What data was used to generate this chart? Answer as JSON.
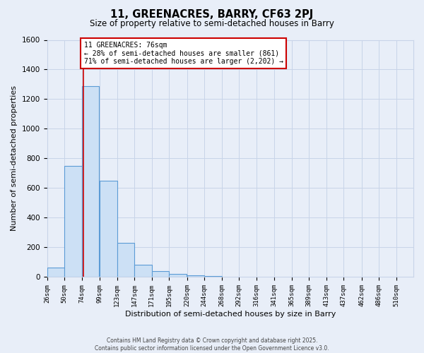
{
  "title": "11, GREENACRES, BARRY, CF63 2PJ",
  "subtitle": "Size of property relative to semi-detached houses in Barry",
  "xlabel": "Distribution of semi-detached houses by size in Barry",
  "ylabel": "Number of semi-detached properties",
  "bar_labels": [
    "26sqm",
    "50sqm",
    "74sqm",
    "99sqm",
    "123sqm",
    "147sqm",
    "171sqm",
    "195sqm",
    "220sqm",
    "244sqm",
    "268sqm",
    "292sqm",
    "316sqm",
    "341sqm",
    "365sqm",
    "389sqm",
    "413sqm",
    "437sqm",
    "462sqm",
    "486sqm",
    "510sqm"
  ],
  "bar_values": [
    65,
    750,
    1290,
    650,
    230,
    85,
    40,
    20,
    10,
    5,
    0,
    0,
    0,
    0,
    0,
    0,
    0,
    0,
    0,
    0,
    0
  ],
  "bar_color": "#cce0f5",
  "bar_edge_color": "#5b9bd5",
  "property_line_x": 76,
  "property_line_label": "11 GREENACRES: 76sqm",
  "annotation_line1": "← 28% of semi-detached houses are smaller (861)",
  "annotation_line2": "71% of semi-detached houses are larger (2,202) →",
  "annotation_box_facecolor": "#ffffff",
  "annotation_box_edgecolor": "#cc0000",
  "ylim": [
    0,
    1600
  ],
  "yticks": [
    0,
    200,
    400,
    600,
    800,
    1000,
    1200,
    1400,
    1600
  ],
  "grid_color": "#c8d4e8",
  "background_color": "#e8eef8",
  "plot_bg_color": "#e8eef8",
  "footer1": "Contains HM Land Registry data © Crown copyright and database right 2025.",
  "footer2": "Contains public sector information licensed under the Open Government Licence v3.0."
}
